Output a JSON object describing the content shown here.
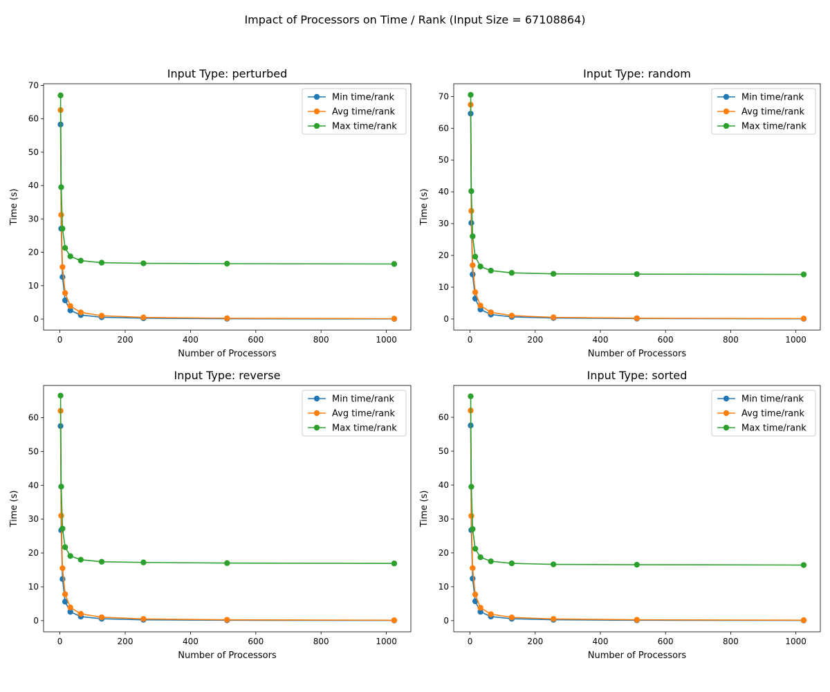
{
  "figure": {
    "suptitle": "Impact of Processors on Time / Rank (Input Size = 67108864)"
  },
  "series_style": {
    "Min time/rank": "#1f77b4",
    "Avg time/rank": "#ff7f0e",
    "Max time/rank": "#2ca02c"
  },
  "chart_data": [
    {
      "type": "line",
      "title": "Input Type: perturbed",
      "xlabel": "Number of Processors",
      "ylabel": "Time (s)",
      "xlim": [
        -50,
        1075
      ],
      "ylim": [
        -3.3,
        70.5
      ],
      "xticks": [
        0,
        200,
        400,
        600,
        800,
        1000
      ],
      "yticks": [
        0,
        10,
        20,
        30,
        40,
        50,
        60,
        70
      ],
      "legend": "top-right",
      "x": [
        2,
        4,
        8,
        16,
        32,
        64,
        128,
        256,
        512,
        1024
      ],
      "series": [
        {
          "name": "Min time/rank",
          "values": [
            58.3,
            27.1,
            12.6,
            5.6,
            2.6,
            1.2,
            0.55,
            0.25,
            0.1,
            0.05
          ]
        },
        {
          "name": "Avg time/rank",
          "values": [
            62.6,
            31.2,
            15.6,
            7.8,
            3.9,
            2.0,
            1.0,
            0.5,
            0.25,
            0.12
          ]
        },
        {
          "name": "Max time/rank",
          "values": [
            67.0,
            39.5,
            27.1,
            21.3,
            18.8,
            17.5,
            16.9,
            16.7,
            16.6,
            16.5
          ]
        }
      ]
    },
    {
      "type": "line",
      "title": "Input Type: random",
      "xlabel": "Number of Processors",
      "ylabel": "Time (s)",
      "xlim": [
        -50,
        1075
      ],
      "ylim": [
        -3.5,
        74
      ],
      "xticks": [
        0,
        200,
        400,
        600,
        800,
        1000
      ],
      "yticks": [
        0,
        10,
        20,
        30,
        40,
        50,
        60,
        70
      ],
      "legend": "top-right",
      "x": [
        2,
        4,
        8,
        16,
        32,
        64,
        128,
        256,
        512,
        1024
      ],
      "series": [
        {
          "name": "Min time/rank",
          "values": [
            64.6,
            30.2,
            14.0,
            6.4,
            3.0,
            1.4,
            0.65,
            0.3,
            0.12,
            0.05
          ]
        },
        {
          "name": "Avg time/rank",
          "values": [
            67.4,
            34.0,
            16.9,
            8.4,
            4.2,
            2.1,
            1.05,
            0.5,
            0.25,
            0.12
          ]
        },
        {
          "name": "Max time/rank",
          "values": [
            70.5,
            40.2,
            26.0,
            19.6,
            16.5,
            15.2,
            14.5,
            14.2,
            14.1,
            14.0
          ]
        }
      ]
    },
    {
      "type": "line",
      "title": "Input Type: reverse",
      "xlabel": "Number of Processors",
      "ylabel": "Time (s)",
      "xlim": [
        -50,
        1075
      ],
      "ylim": [
        -3.3,
        69.5
      ],
      "xticks": [
        0,
        200,
        400,
        600,
        800,
        1000
      ],
      "yticks": [
        0,
        10,
        20,
        30,
        40,
        50,
        60
      ],
      "legend": "top-right",
      "x": [
        2,
        4,
        8,
        16,
        32,
        64,
        128,
        256,
        512,
        1024
      ],
      "series": [
        {
          "name": "Min time/rank",
          "values": [
            57.5,
            26.7,
            12.3,
            5.6,
            2.6,
            1.2,
            0.55,
            0.25,
            0.1,
            0.05
          ]
        },
        {
          "name": "Avg time/rank",
          "values": [
            62.0,
            31.0,
            15.5,
            7.8,
            3.9,
            2.0,
            1.0,
            0.5,
            0.25,
            0.12
          ]
        },
        {
          "name": "Max time/rank",
          "values": [
            66.5,
            39.6,
            27.2,
            21.7,
            19.1,
            18.0,
            17.4,
            17.2,
            17.0,
            16.9
          ]
        }
      ]
    },
    {
      "type": "line",
      "title": "Input Type: sorted",
      "xlabel": "Number of Processors",
      "ylabel": "Time (s)",
      "xlim": [
        -50,
        1075
      ],
      "ylim": [
        -3.3,
        69.4
      ],
      "xticks": [
        0,
        200,
        400,
        600,
        800,
        1000
      ],
      "yticks": [
        0,
        10,
        20,
        30,
        40,
        50,
        60
      ],
      "legend": "top-right",
      "x": [
        2,
        4,
        8,
        16,
        32,
        64,
        128,
        256,
        512,
        1024
      ],
      "series": [
        {
          "name": "Min time/rank",
          "values": [
            57.6,
            26.7,
            12.4,
            5.7,
            2.6,
            1.2,
            0.55,
            0.25,
            0.1,
            0.05
          ]
        },
        {
          "name": "Avg time/rank",
          "values": [
            62.0,
            30.9,
            15.5,
            7.7,
            3.8,
            1.9,
            0.95,
            0.5,
            0.25,
            0.12
          ]
        },
        {
          "name": "Max time/rank",
          "values": [
            66.2,
            39.5,
            27.0,
            21.2,
            18.7,
            17.5,
            16.9,
            16.6,
            16.5,
            16.4
          ]
        }
      ]
    }
  ]
}
